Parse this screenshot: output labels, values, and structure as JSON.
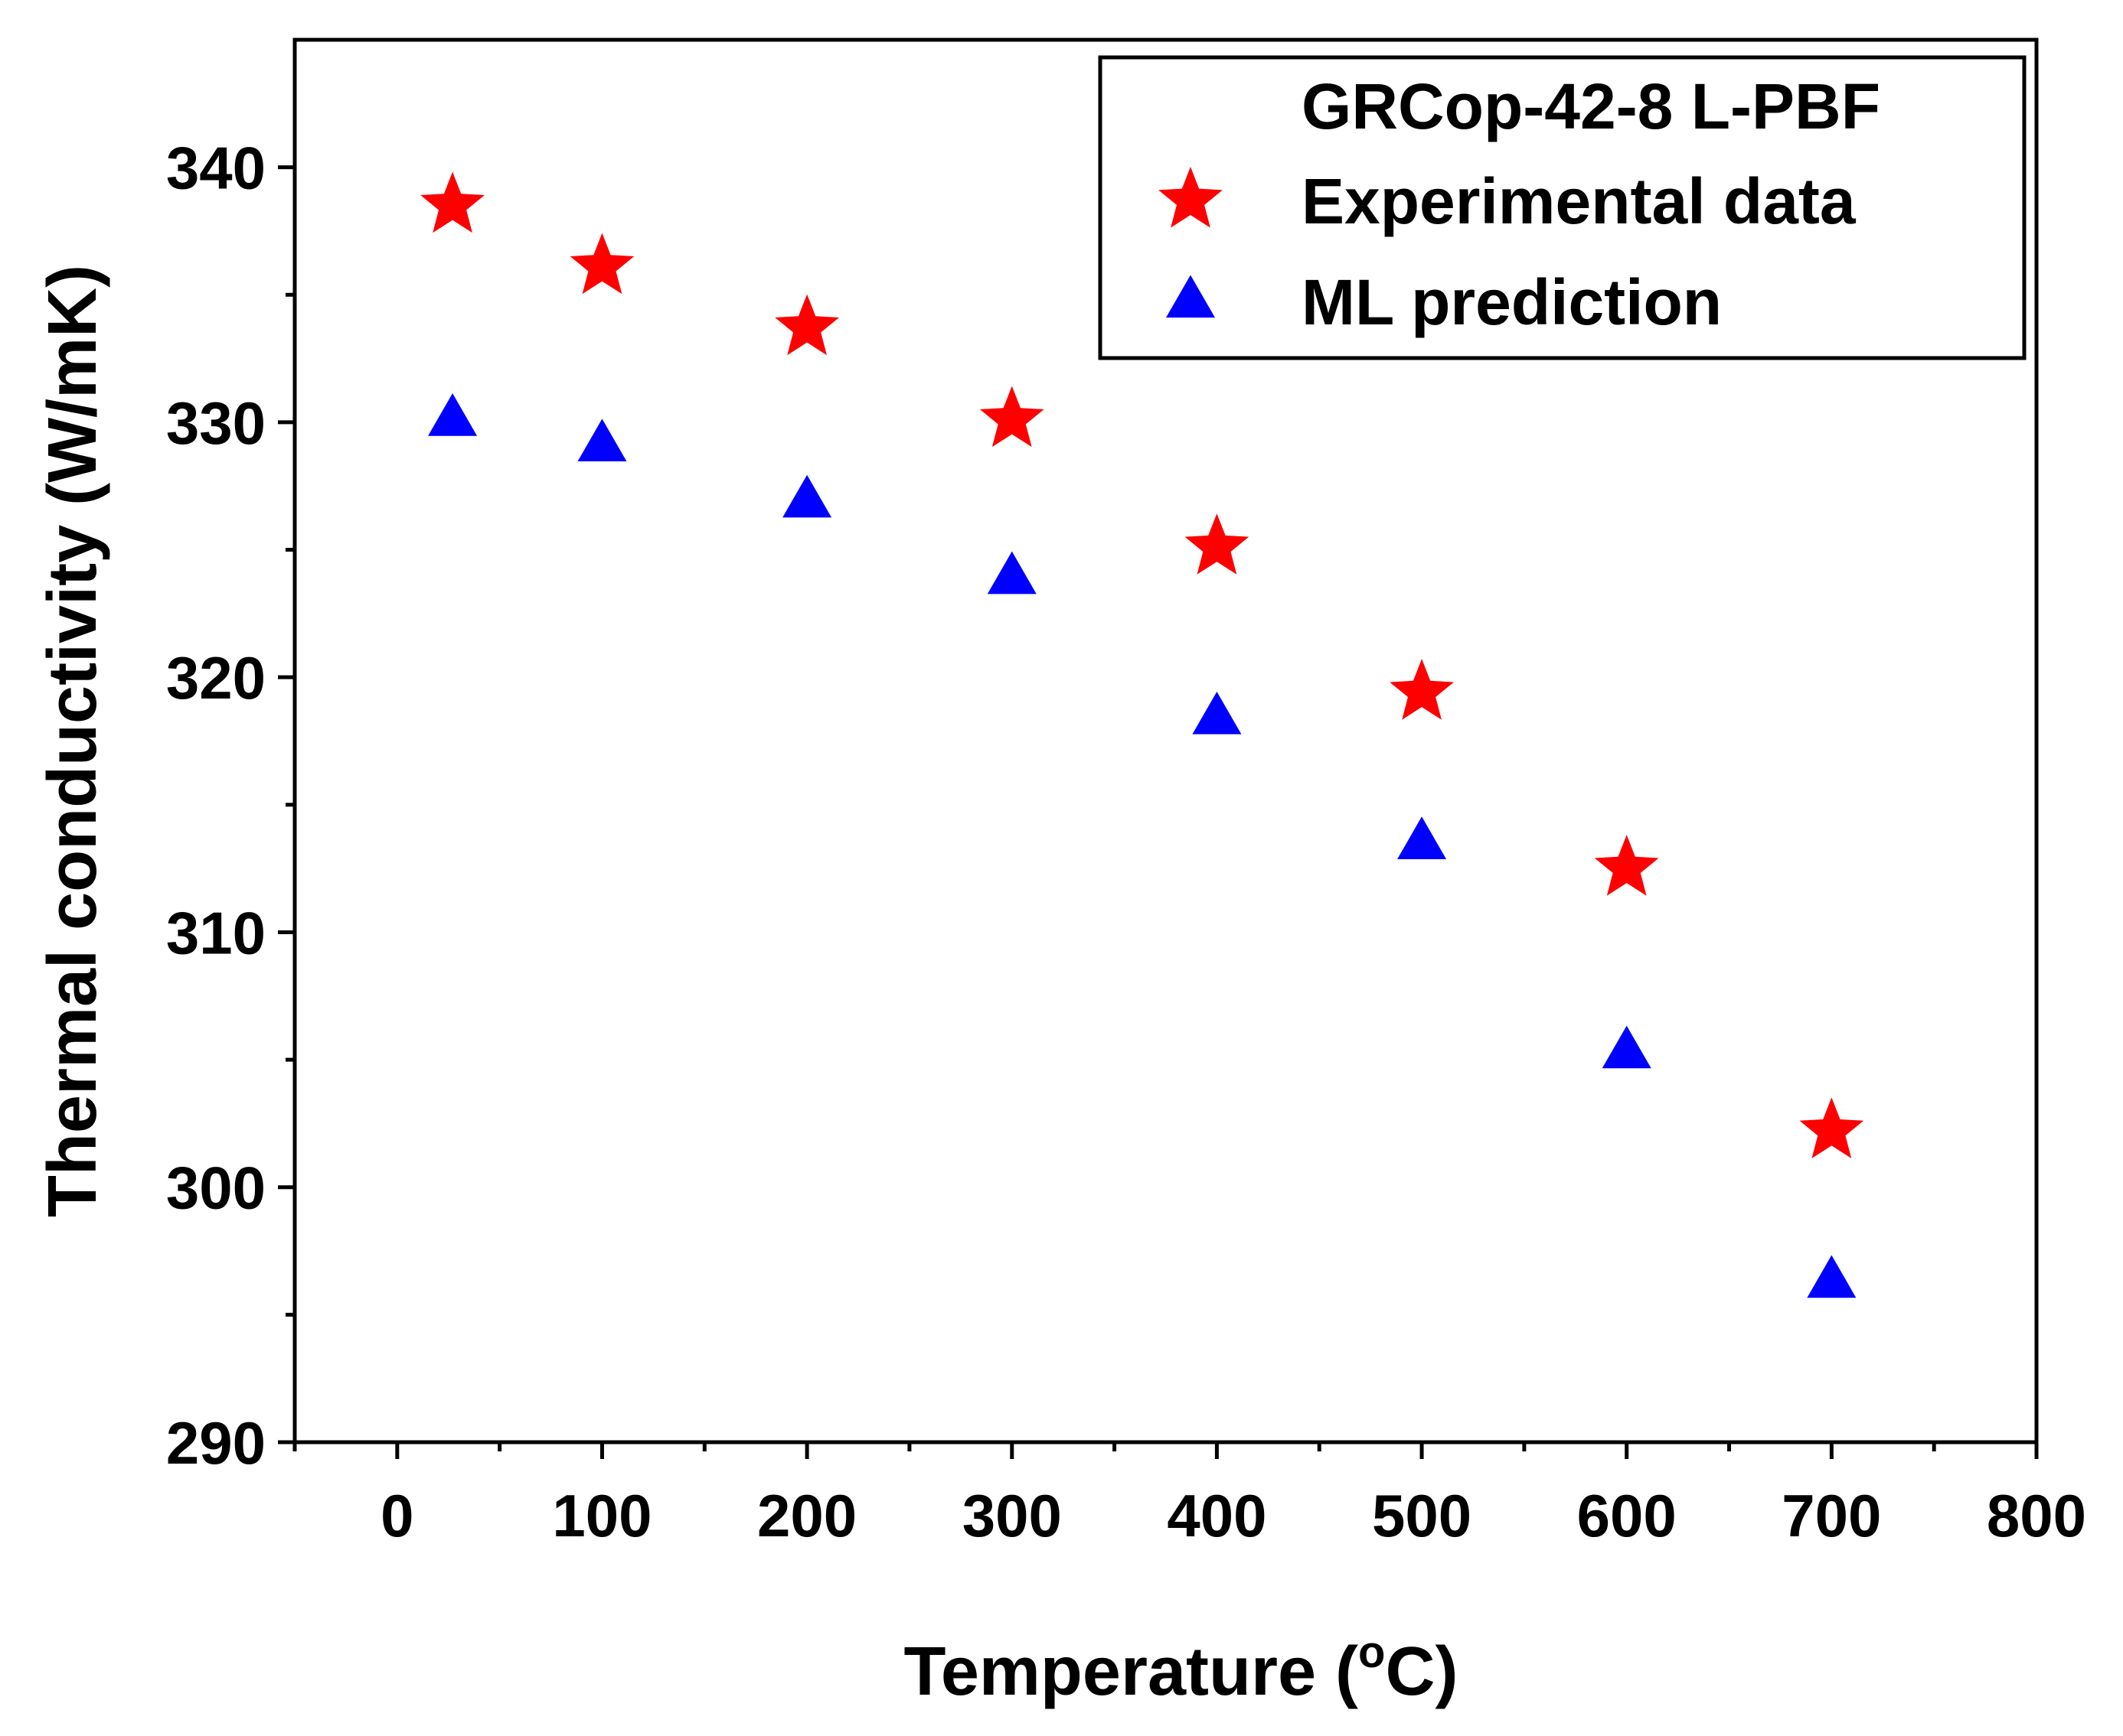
{
  "chart_data": {
    "type": "scatter",
    "title": "",
    "xlabel": "Temperature (",
    "xlabel_super": "o",
    "xlabel_unit": "C)",
    "ylabel": "Thermal conductivity (W/mK)",
    "xlim": [
      -50,
      800
    ],
    "ylim": [
      290,
      345
    ],
    "x_ticks": [
      0,
      100,
      200,
      300,
      400,
      500,
      600,
      700,
      800
    ],
    "y_ticks": [
      290,
      300,
      310,
      320,
      330,
      340
    ],
    "x_tick_labels": [
      "0",
      "100",
      "200",
      "300",
      "400",
      "500",
      "600",
      "700",
      "800"
    ],
    "y_tick_labels": [
      "290",
      "300",
      "310",
      "320",
      "330",
      "340"
    ],
    "grid": false,
    "legend": {
      "placement": "top-right",
      "title": "GRCop-42-8 L-PBF"
    },
    "series": [
      {
        "name": "Experimental data",
        "marker": "star",
        "color": "#ff0000",
        "x": [
          27,
          100,
          200,
          300,
          400,
          500,
          600,
          700
        ],
        "y": [
          338.5,
          336.1,
          333.7,
          330.1,
          325.1,
          319.4,
          312.5,
          302.2
        ]
      },
      {
        "name": "ML prediction",
        "marker": "triangle",
        "color": "#0000ff",
        "x": [
          27,
          100,
          200,
          300,
          400,
          500,
          600,
          700
        ],
        "y": [
          330.1,
          329.1,
          326.9,
          323.9,
          318.4,
          313.5,
          305.3,
          296.3
        ]
      }
    ]
  }
}
